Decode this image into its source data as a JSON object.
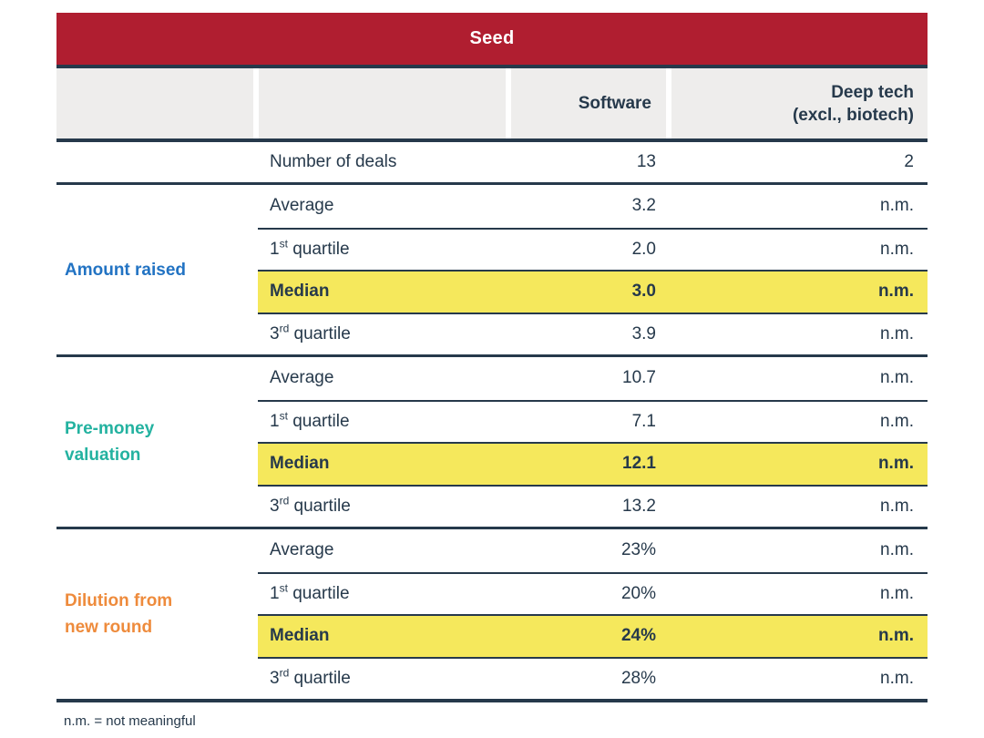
{
  "chart_data": {
    "type": "table",
    "title": "Seed",
    "column_headers": {
      "software": "Software",
      "deep_tech_line1": "Deep tech",
      "deep_tech_line2": "(excl., biotech)"
    },
    "deals": {
      "label": "Number of deals",
      "software": "13",
      "deep_tech": "2"
    },
    "groups": [
      {
        "name": "Amount raised",
        "rows": [
          {
            "metric": "Average",
            "sup": "",
            "metric_rest": "",
            "software": "3.2",
            "deep_tech": "n.m.",
            "highlight": false
          },
          {
            "metric": "1",
            "sup": "st",
            "metric_rest": " quartile",
            "software": "2.0",
            "deep_tech": "n.m.",
            "highlight": false
          },
          {
            "metric": "Median",
            "sup": "",
            "metric_rest": "",
            "software": "3.0",
            "deep_tech": "n.m.",
            "highlight": true
          },
          {
            "metric": "3",
            "sup": "rd",
            "metric_rest": " quartile",
            "software": "3.9",
            "deep_tech": "n.m.",
            "highlight": false
          }
        ]
      },
      {
        "name": "Pre-money valuation",
        "rows": [
          {
            "metric": "Average",
            "sup": "",
            "metric_rest": "",
            "software": "10.7",
            "deep_tech": "n.m.",
            "highlight": false
          },
          {
            "metric": "1",
            "sup": "st",
            "metric_rest": " quartile",
            "software": "7.1",
            "deep_tech": "n.m.",
            "highlight": false
          },
          {
            "metric": "Median",
            "sup": "",
            "metric_rest": "",
            "software": "12.1",
            "deep_tech": "n.m.",
            "highlight": true
          },
          {
            "metric": "3",
            "sup": "rd",
            "metric_rest": " quartile",
            "software": "13.2",
            "deep_tech": "n.m.",
            "highlight": false
          }
        ]
      },
      {
        "name": "Dilution from new round",
        "rows": [
          {
            "metric": "Average",
            "sup": "",
            "metric_rest": "",
            "software": "23%",
            "deep_tech": "n.m.",
            "highlight": false
          },
          {
            "metric": "1",
            "sup": "st",
            "metric_rest": " quartile",
            "software": "20%",
            "deep_tech": "n.m.",
            "highlight": false
          },
          {
            "metric": "Median",
            "sup": "",
            "metric_rest": "",
            "software": "24%",
            "deep_tech": "n.m.",
            "highlight": true
          },
          {
            "metric": "3",
            "sup": "rd",
            "metric_rest": " quartile",
            "software": "28%",
            "deep_tech": "n.m.",
            "highlight": false
          }
        ]
      }
    ],
    "footnote": "n.m. = not meaningful"
  },
  "colors": {
    "header_band": "#b01e30",
    "navy": "#26394b",
    "header_bg": "#eeedec",
    "highlight": "#f5e85c",
    "group_amount_raised": "#2273c3",
    "group_pre_money": "#23b2a0",
    "group_dilution": "#ee8b3c"
  }
}
